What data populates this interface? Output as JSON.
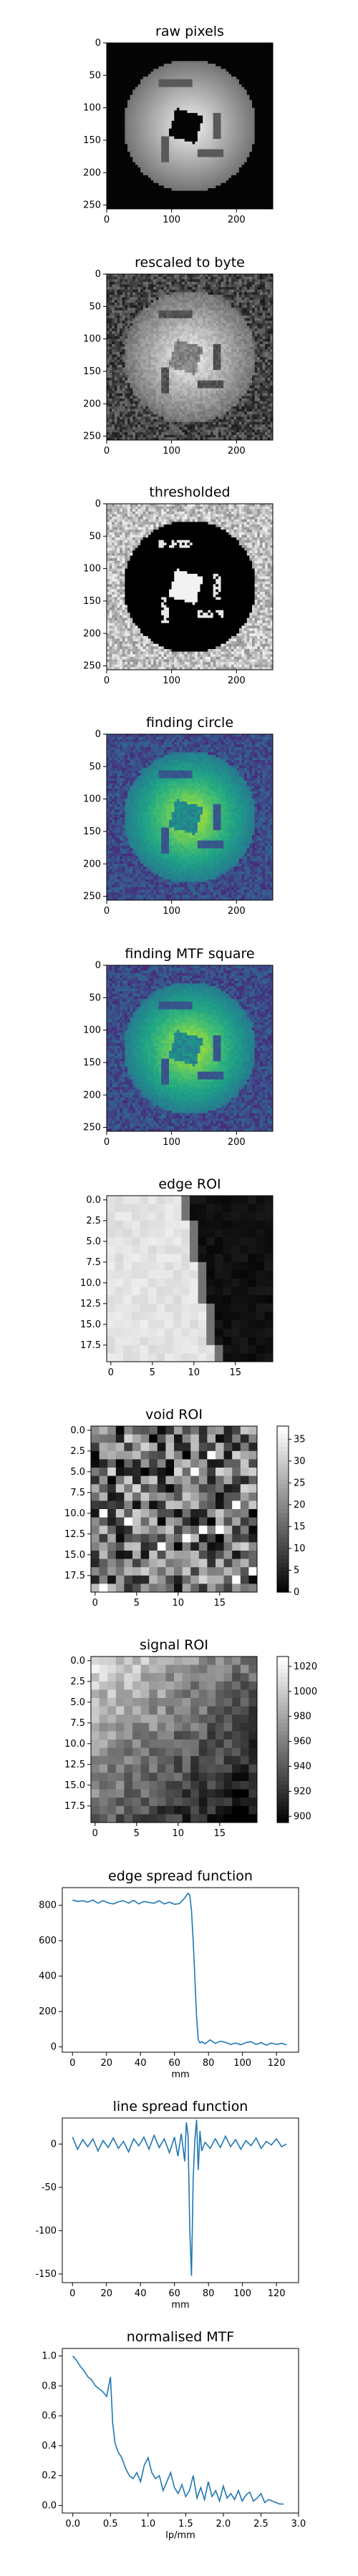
{
  "chart_data": [
    {
      "type": "heatmap",
      "title": "raw pixels",
      "image": "phantom-gray",
      "xticks": [
        0,
        100,
        200
      ],
      "yticks": [
        0,
        50,
        100,
        150,
        200,
        250
      ],
      "xlim": [
        0,
        256
      ],
      "ylim": [
        256,
        0
      ]
    },
    {
      "type": "heatmap",
      "title": "rescaled to byte",
      "image": "phantom-noisy",
      "xticks": [
        0,
        100,
        200
      ],
      "yticks": [
        0,
        50,
        100,
        150,
        200,
        250
      ],
      "xlim": [
        0,
        256
      ],
      "ylim": [
        256,
        0
      ]
    },
    {
      "type": "heatmap",
      "title": "thresholded",
      "image": "phantom-threshold",
      "xticks": [
        0,
        100,
        200
      ],
      "yticks": [
        0,
        50,
        100,
        150,
        200,
        250
      ],
      "xlim": [
        0,
        256
      ],
      "ylim": [
        256,
        0
      ]
    },
    {
      "type": "heatmap",
      "title": "finding circle",
      "image": "phantom-viridis",
      "xticks": [
        0,
        100,
        200
      ],
      "yticks": [
        0,
        50,
        100,
        150,
        200,
        250
      ],
      "xlim": [
        0,
        256
      ],
      "ylim": [
        256,
        0
      ]
    },
    {
      "type": "heatmap",
      "title": "finding MTF square",
      "image": "phantom-viridis",
      "xticks": [
        0,
        100,
        200
      ],
      "yticks": [
        0,
        50,
        100,
        150,
        200,
        250
      ],
      "xlim": [
        0,
        256
      ],
      "ylim": [
        256,
        0
      ]
    },
    {
      "type": "heatmap",
      "title": "edge ROI",
      "image": "edge-roi",
      "xticks": [
        0,
        5,
        10,
        15
      ],
      "yticks": [
        "0.0",
        "2.5",
        "5.0",
        "7.5",
        "10.0",
        "12.5",
        "15.0",
        "17.5"
      ],
      "grid_size": 20
    },
    {
      "type": "heatmap",
      "title": "void ROI",
      "image": "void-roi",
      "xticks": [
        0,
        5,
        10,
        15
      ],
      "yticks": [
        "0.0",
        "2.5",
        "5.0",
        "7.5",
        "10.0",
        "12.5",
        "15.0",
        "17.5"
      ],
      "grid_size": 20,
      "colorbar": {
        "min": 0,
        "max": 38,
        "ticks": [
          0,
          5,
          10,
          15,
          20,
          25,
          30,
          35
        ]
      }
    },
    {
      "type": "heatmap",
      "title": "signal ROI",
      "image": "signal-roi",
      "xticks": [
        0,
        5,
        10,
        15
      ],
      "yticks": [
        "0.0",
        "2.5",
        "5.0",
        "7.5",
        "10.0",
        "12.5",
        "15.0",
        "17.5"
      ],
      "grid_size": 20,
      "colorbar": {
        "min": 895,
        "max": 1028,
        "ticks": [
          900,
          920,
          940,
          960,
          980,
          1000,
          1020
        ]
      }
    },
    {
      "type": "line",
      "title": "edge spread function",
      "xlabel": "mm",
      "xticks": [
        0,
        20,
        40,
        60,
        80,
        100,
        120
      ],
      "yticks": [
        0,
        200,
        400,
        600,
        800
      ],
      "xlim": [
        -6,
        133
      ],
      "ylim": [
        -30,
        900
      ],
      "x": [
        0,
        3,
        6,
        9,
        12,
        15,
        18,
        21,
        24,
        27,
        30,
        33,
        36,
        39,
        42,
        45,
        48,
        51,
        54,
        57,
        60,
        63,
        66,
        68,
        69,
        70,
        71,
        72,
        73,
        74,
        75,
        76,
        78,
        81,
        84,
        87,
        90,
        93,
        96,
        99,
        102,
        105,
        108,
        111,
        114,
        117,
        120,
        123,
        126
      ],
      "y": [
        830,
        822,
        826,
        818,
        830,
        812,
        826,
        814,
        808,
        820,
        826,
        812,
        828,
        808,
        822,
        816,
        812,
        826,
        808,
        818,
        806,
        810,
        842,
        868,
        858,
        770,
        600,
        390,
        170,
        40,
        22,
        30,
        18,
        40,
        20,
        32,
        26,
        14,
        22,
        12,
        24,
        30,
        14,
        24,
        10,
        22,
        14,
        20,
        12
      ]
    },
    {
      "type": "line",
      "title": "line spread function",
      "xlabel": "mm",
      "xticks": [
        0,
        20,
        40,
        60,
        80,
        100,
        120
      ],
      "yticks": [
        0,
        -50,
        -100,
        -150
      ],
      "xlim": [
        -6,
        133
      ],
      "ylim": [
        -160,
        30
      ],
      "x": [
        0,
        3,
        6,
        9,
        12,
        15,
        18,
        21,
        24,
        27,
        30,
        33,
        36,
        39,
        42,
        45,
        48,
        51,
        54,
        57,
        60,
        62,
        64,
        66,
        67,
        68,
        69,
        70,
        71,
        72,
        73,
        74,
        75,
        76,
        78,
        81,
        84,
        87,
        90,
        93,
        96,
        99,
        102,
        105,
        108,
        111,
        114,
        117,
        120,
        123,
        126
      ],
      "y": [
        8,
        -6,
        5,
        -3,
        6,
        -8,
        4,
        -4,
        7,
        -5,
        3,
        -9,
        6,
        -2,
        8,
        -6,
        10,
        -4,
        6,
        -10,
        8,
        -14,
        12,
        -20,
        25,
        10,
        -100,
        -152,
        -40,
        5,
        28,
        -30,
        15,
        -8,
        2,
        -5,
        6,
        -4,
        9,
        -3,
        5,
        -6,
        4,
        -2,
        7,
        -5,
        3,
        -1,
        6,
        -3,
        0
      ]
    },
    {
      "type": "line",
      "title": "normalised MTF",
      "xlabel": "lp/mm",
      "xticks": [
        "0.0",
        "0.5",
        "1.0",
        "1.5",
        "2.0",
        "2.5",
        "3.0"
      ],
      "yticks": [
        "0.0",
        "0.2",
        "0.4",
        "0.6",
        "0.8",
        "1.0"
      ],
      "xlim": [
        -0.14,
        3.0
      ],
      "ylim": [
        -0.05,
        1.05
      ],
      "x": [
        0,
        0.05,
        0.1,
        0.15,
        0.2,
        0.25,
        0.3,
        0.35,
        0.4,
        0.45,
        0.5,
        0.53,
        0.56,
        0.6,
        0.65,
        0.7,
        0.75,
        0.8,
        0.85,
        0.9,
        0.95,
        1.0,
        1.05,
        1.1,
        1.15,
        1.2,
        1.25,
        1.3,
        1.35,
        1.4,
        1.45,
        1.5,
        1.55,
        1.6,
        1.65,
        1.7,
        1.75,
        1.8,
        1.85,
        1.9,
        1.95,
        2.0,
        2.05,
        2.1,
        2.15,
        2.2,
        2.25,
        2.3,
        2.35,
        2.4,
        2.45,
        2.5,
        2.55,
        2.6,
        2.65,
        2.7,
        2.75,
        2.8
      ],
      "y": [
        1.0,
        0.97,
        0.93,
        0.9,
        0.86,
        0.84,
        0.8,
        0.78,
        0.76,
        0.73,
        0.86,
        0.55,
        0.42,
        0.36,
        0.32,
        0.25,
        0.2,
        0.18,
        0.22,
        0.16,
        0.27,
        0.32,
        0.22,
        0.18,
        0.2,
        0.1,
        0.16,
        0.22,
        0.12,
        0.08,
        0.14,
        0.06,
        0.1,
        0.2,
        0.05,
        0.12,
        0.04,
        0.16,
        0.06,
        0.1,
        0.03,
        0.13,
        0.05,
        0.08,
        0.04,
        0.1,
        0.03,
        0.07,
        0.09,
        0.03,
        0.05,
        0.08,
        0.02,
        0.04,
        0.03,
        0.02,
        0.01,
        0.01
      ]
    }
  ]
}
